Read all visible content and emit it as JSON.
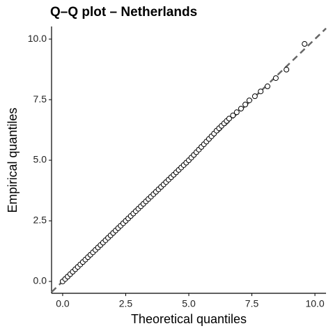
{
  "chart_data": {
    "type": "scatter",
    "title": "Q–Q plot – Netherlands",
    "x_label": "Theoretical quantiles",
    "y_label": "Empirical quantiles",
    "series": [
      {
        "color": "#000000",
        "x": [
          0,
          0.1,
          0.2,
          0.3,
          0.4,
          0.5,
          0.6,
          0.7,
          0.8,
          0.9,
          1,
          1.1,
          1.2,
          1.3,
          1.4,
          1.5,
          1.6,
          1.7,
          1.8,
          1.9,
          2,
          2.1,
          2.2,
          2.3,
          2.4,
          2.5,
          2.6,
          2.7,
          2.8,
          2.9,
          3,
          3.1,
          3.2,
          3.3,
          3.4,
          3.5,
          3.6,
          3.7,
          3.8,
          3.9,
          4,
          4.1,
          4.2,
          4.3,
          4.4,
          4.5,
          4.6,
          4.7,
          4.8,
          4.9,
          5,
          5.1,
          5.2,
          5.3,
          5.4,
          5.5,
          5.6,
          5.7,
          5.8,
          5.9,
          6,
          6.1,
          6.2,
          6.3,
          6.4,
          6.5,
          6.6,
          6.75,
          6.9,
          7.07,
          7.24,
          7.4,
          7.62,
          7.85,
          8.12,
          8.45,
          8.87,
          9.59
        ],
        "values": [
          0,
          0.1,
          0.2,
          0.3,
          0.4,
          0.5,
          0.6,
          0.7,
          0.8,
          0.9,
          1,
          1.1,
          1.2,
          1.3,
          1.4,
          1.5,
          1.6,
          1.7,
          1.8,
          1.9,
          2,
          2.1,
          2.2,
          2.3,
          2.4,
          2.5,
          2.6,
          2.7,
          2.8,
          2.9,
          3,
          3.1,
          3.2,
          3.3,
          3.4,
          3.5,
          3.6,
          3.7,
          3.8,
          3.9,
          4,
          4.1,
          4.2,
          4.3,
          4.4,
          4.5,
          4.6,
          4.7,
          4.8,
          4.9,
          5,
          5.11,
          5.22,
          5.33,
          5.44,
          5.55,
          5.66,
          5.77,
          5.88,
          5.99,
          6.1,
          6.22,
          6.32,
          6.42,
          6.52,
          6.62,
          6.72,
          6.85,
          6.98,
          7.13,
          7.3,
          7.47,
          7.64,
          7.84,
          8.05,
          8.39,
          8.74,
          9.8
        ]
      }
    ],
    "reference_line": {
      "slope": 1,
      "intercept": 0,
      "color": "#666666",
      "dashed": true
    },
    "xlim": [
      -0.44,
      10.44
    ],
    "ylim": [
      -0.49,
      10.52
    ],
    "xticks": [
      {
        "value": 0,
        "label": "0.0"
      },
      2.5,
      {
        "value": 5,
        "label": "5.0"
      },
      7.5,
      {
        "value": 10,
        "label": "10.0"
      }
    ],
    "yticks": [
      {
        "value": 0,
        "label": "0.0"
      },
      2.5,
      {
        "value": 5,
        "label": "5.0"
      },
      7.5,
      {
        "value": 10,
        "label": "10.0"
      }
    ],
    "grid": false
  }
}
